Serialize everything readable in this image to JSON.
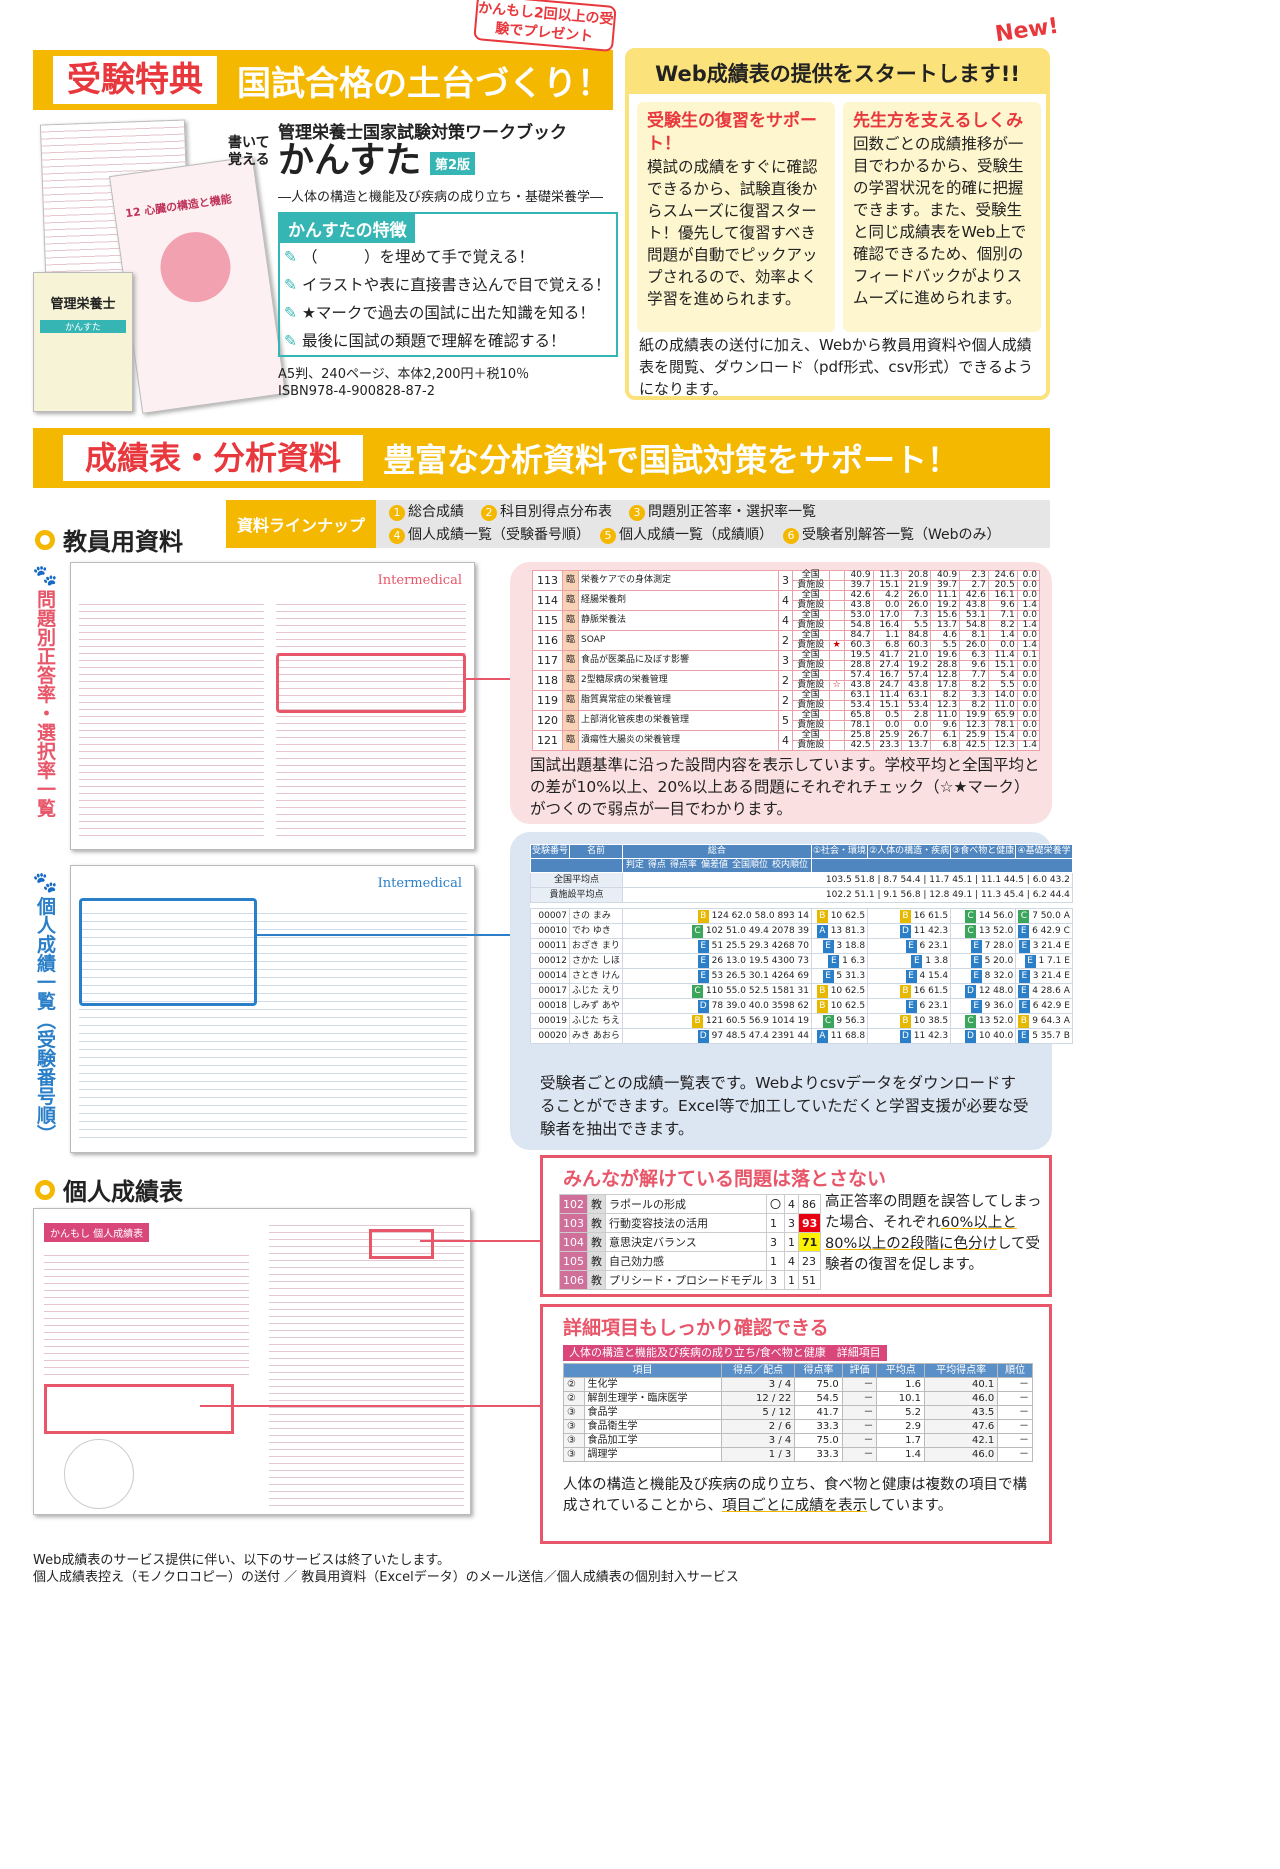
{
  "top": {
    "banner_label": "受験特典",
    "banner_title": "国試合格の土台づくり！",
    "sticker": "かんもし2回以上の受験でプレゼント",
    "book": {
      "catch": "書いて覚える",
      "series": "管理栄養士国家試験対策ワークブック",
      "title": "かんすた",
      "edition": "第2版",
      "subtitle": "―人体の構造と機能及び疾病の成り立ち・基礎栄養学―",
      "features_title": "かんすたの特徴",
      "features": [
        "（　　　）を埋めて手で覚える！",
        "イラストや表に直接書き込んで目で覚える！",
        "★マークで過去の国試に出た知識を知る！",
        "最後に国試の類題で理解を確認する！"
      ],
      "spec": "A5判、240ページ、本体2,200円＋税10％",
      "isbn": "ISBN978-4-900828-87-2",
      "thumb_chapter": "12 心臓の構造と機能",
      "cover_title": "管理栄養士"
    }
  },
  "web": {
    "new": "New!",
    "title": "Web成績表の提供をスタートします!!",
    "left": {
      "title": "受験生の復習をサポート！",
      "body": "模試の成績をすぐに確認できるから、試験直後からスムーズに復習スタート！優先して復習すべき問題が自動でピックアップされるので、効率よく学習を進められます。"
    },
    "right": {
      "title": "先生方を支えるしくみ",
      "body": "回数ごとの成績推移が一目でわかるから、受験生の学習状況を的確に把握できます。また、受験生と同じ成績表をWeb上で確認できるため、個別のフィードバックがよりスムーズに進められます。"
    },
    "footer": "紙の成績表の送付に加え、Webから教員用資料や個人成績表を閲覧、ダウンロード（pdf形式、csv形式）できるようになります。"
  },
  "analysis": {
    "banner_label": "成績表・分析資料",
    "banner_title": "豊富な分析資料で国試対策をサポート！"
  },
  "teacher": {
    "title": "教員用資料",
    "lineup_label": "資料ラインナップ",
    "lineup": [
      {
        "n": "1",
        "t": "総合成績"
      },
      {
        "n": "2",
        "t": "科目別得点分布表"
      },
      {
        "n": "3",
        "t": "問題別正答率・選択率一覧"
      },
      {
        "n": "4",
        "t": "個人成績一覧（受験番号順）"
      },
      {
        "n": "5",
        "t": "個人成績一覧（成績順）"
      },
      {
        "n": "6",
        "t": "受験者別解答一覧（Webのみ）"
      }
    ],
    "vlabel1": "問題別正答率・選択率一覧",
    "vlabel2": "個人成績一覧（受験番号順）",
    "brand": "Intermedical"
  },
  "problems": {
    "rows": [
      {
        "no": "113",
        "cat": "臨",
        "name": "栄養ケアでの身体測定",
        "ans": "3",
        "mark": "",
        "nat": [
          "40.9",
          "11.3",
          "20.8",
          "40.9",
          "2.3",
          "24.6",
          "0.0"
        ],
        "fac": [
          "39.7",
          "15.1",
          "21.9",
          "39.7",
          "2.7",
          "20.5",
          "0.0"
        ]
      },
      {
        "no": "114",
        "cat": "臨",
        "name": "経腸栄養剤",
        "ans": "4",
        "mark": "",
        "nat": [
          "42.6",
          "4.2",
          "26.0",
          "11.1",
          "42.6",
          "16.1",
          "0.0"
        ],
        "fac": [
          "43.8",
          "0.0",
          "26.0",
          "19.2",
          "43.8",
          "9.6",
          "1.4"
        ]
      },
      {
        "no": "115",
        "cat": "臨",
        "name": "静脈栄養法",
        "ans": "4",
        "mark": "",
        "nat": [
          "53.0",
          "17.0",
          "7.3",
          "15.6",
          "53.1",
          "7.1",
          "0.0"
        ],
        "fac": [
          "54.8",
          "16.4",
          "5.5",
          "13.7",
          "54.8",
          "8.2",
          "1.4"
        ]
      },
      {
        "no": "116",
        "cat": "臨",
        "name": "SOAP",
        "ans": "2",
        "mark": "★",
        "nat": [
          "84.7",
          "1.1",
          "84.8",
          "4.6",
          "8.1",
          "1.4",
          "0.0"
        ],
        "fac": [
          "60.3",
          "6.8",
          "60.3",
          "5.5",
          "26.0",
          "0.0",
          "1.4"
        ]
      },
      {
        "no": "117",
        "cat": "臨",
        "name": "食品が医薬品に及ぼす影響",
        "ans": "3",
        "mark": "",
        "nat": [
          "19.5",
          "41.7",
          "21.0",
          "19.6",
          "6.3",
          "11.4",
          "0.1"
        ],
        "fac": [
          "28.8",
          "27.4",
          "19.2",
          "28.8",
          "9.6",
          "15.1",
          "0.0"
        ]
      },
      {
        "no": "118",
        "cat": "臨",
        "name": "2型糖尿病の栄養管理",
        "ans": "2",
        "mark": "☆",
        "nat": [
          "57.4",
          "16.7",
          "57.4",
          "12.8",
          "7.7",
          "5.4",
          "0.0"
        ],
        "fac": [
          "43.8",
          "24.7",
          "43.8",
          "17.8",
          "8.2",
          "5.5",
          "0.0"
        ]
      },
      {
        "no": "119",
        "cat": "臨",
        "name": "脂質異常症の栄養管理",
        "ans": "2",
        "mark": "",
        "nat": [
          "63.1",
          "11.4",
          "63.1",
          "8.2",
          "3.3",
          "14.0",
          "0.0"
        ],
        "fac": [
          "53.4",
          "15.1",
          "53.4",
          "12.3",
          "8.2",
          "11.0",
          "0.0"
        ]
      },
      {
        "no": "120",
        "cat": "臨",
        "name": "上部消化管疾患の栄養管理",
        "ans": "5",
        "mark": "",
        "nat": [
          "65.8",
          "0.5",
          "2.8",
          "11.0",
          "19.9",
          "65.9",
          "0.0"
        ],
        "fac": [
          "78.1",
          "0.0",
          "0.0",
          "9.6",
          "12.3",
          "78.1",
          "0.0"
        ]
      },
      {
        "no": "121",
        "cat": "臨",
        "name": "潰瘍性大腸炎の栄養管理",
        "ans": "4",
        "mark": "",
        "nat": [
          "25.8",
          "25.9",
          "26.7",
          "6.1",
          "25.9",
          "15.4",
          "0.0"
        ],
        "fac": [
          "42.5",
          "23.3",
          "13.7",
          "6.8",
          "42.5",
          "12.3",
          "1.4"
        ]
      }
    ],
    "nat_label": "全国",
    "fac_label": "貴施設",
    "desc": "国試出題基準に沿った設問内容を表示しています。学校平均と全国平均との差が10%以上、20%以上ある問題にそれぞれチェック（☆★マーク）がつくので弱点が一目でわかります。"
  },
  "students": {
    "headers": [
      "受験番号",
      "名前",
      "総合",
      "①社会・環境",
      "②人体の構造・疾病",
      "③食べ物と健康",
      "④基礎栄養学"
    ],
    "subheaders": [
      "判定",
      "得点",
      "得点率",
      "偏差値",
      "全国順位",
      "校内順位"
    ],
    "avg": [
      {
        "label": "全国平均点",
        "vals": "103.5 51.8 | 8.7 54.4 | 11.7 45.1 | 11.1 44.5 | 6.0 43.2"
      },
      {
        "label": "貴施設平均点",
        "vals": "102.2 51.1 | 9.1 56.8 | 12.8 49.1 | 11.3 45.4 | 6.2 44.4"
      }
    ],
    "rows": [
      [
        "00007",
        "さの まみ",
        "B",
        "124 62.0 58.0 893 14",
        "B",
        "10 62.5",
        "B",
        "16 61.5",
        "C",
        "14 56.0",
        "C",
        "7 50.0",
        "A"
      ],
      [
        "00010",
        "でわ ゆき",
        "C",
        "102 51.0 49.4 2078 39",
        "A",
        "13 81.3",
        "D",
        "11 42.3",
        "C",
        "13 52.0",
        "E",
        "6 42.9",
        "C"
      ],
      [
        "00011",
        "おざき まり",
        "E",
        "51 25.5 29.3 4268 70",
        "E",
        "3 18.8",
        "E",
        "6 23.1",
        "E",
        "7 28.0",
        "E",
        "3 21.4",
        "E"
      ],
      [
        "00012",
        "さかた しほ",
        "E",
        "26 13.0 19.5 4300 73",
        "E",
        "1 6.3",
        "E",
        "1 3.8",
        "E",
        "5 20.0",
        "E",
        "1 7.1",
        "E"
      ],
      [
        "00014",
        "さとき けん",
        "E",
        "53 26.5 30.1 4264 69",
        "E",
        "5 31.3",
        "E",
        "4 15.4",
        "E",
        "8 32.0",
        "E",
        "3 21.4",
        "E"
      ],
      [
        "00017",
        "ふじた えり",
        "C",
        "110 55.0 52.5 1581 31",
        "B",
        "10 62.5",
        "B",
        "16 61.5",
        "D",
        "12 48.0",
        "E",
        "4 28.6",
        "A"
      ],
      [
        "00018",
        "しみず あや",
        "D",
        "78 39.0 40.0 3598 62",
        "B",
        "10 62.5",
        "E",
        "6 23.1",
        "E",
        "9 36.0",
        "E",
        "6 42.9",
        "E"
      ],
      [
        "00019",
        "ふじた ちえ",
        "B",
        "121 60.5 56.9 1014 19",
        "C",
        "9 56.3",
        "B",
        "10 38.5",
        "C",
        "13 52.0",
        "B",
        "9 64.3",
        "A"
      ],
      [
        "00020",
        "みき あおら",
        "D",
        "97 48.5 47.4 2391 44",
        "A",
        "11 68.8",
        "D",
        "11 42.3",
        "D",
        "10 40.0",
        "E",
        "5 35.7",
        "B"
      ]
    ],
    "desc": "受験者ごとの成績一覧表です。Webよりcsvデータをダウンロードすることができます。Excel等で加工していただくと学習支援が必要な受験者を抽出できます。"
  },
  "personal": {
    "title": "個人成績表",
    "thumb_title": "かんもし 個人成績表",
    "box1": {
      "title": "みんなが解けている問題は落とさない",
      "rows": [
        [
          "102",
          "教",
          "ラポールの形成",
          "〇",
          "4",
          "86"
        ],
        [
          "103",
          "教",
          "行動変容技法の活用",
          "1",
          "3",
          "93"
        ],
        [
          "104",
          "教",
          "意思決定バランス",
          "3",
          "1",
          "71"
        ],
        [
          "105",
          "教",
          "自己効力感",
          "1",
          "4",
          "23"
        ],
        [
          "106",
          "教",
          "プリシード・プロシードモデル",
          "3",
          "1",
          "51"
        ]
      ],
      "desc_a": "高正答率の問題を誤答してしまった場合、それぞれ",
      "desc_b": "60%以上と80%以上の2段階に色分け",
      "desc_c": "して受験者の復習を促します。"
    },
    "box2": {
      "title": "詳細項目もしっかり確認できる",
      "bar": "人体の構造と機能及び疾病の成り立ち/食べ物と健康　詳細項目",
      "headers": [
        "項目",
        "得点／配点",
        "得点率",
        "評価",
        "平均点",
        "平均得点率",
        "順位"
      ],
      "rows": [
        [
          "②",
          "生化学",
          "3 / 4",
          "75.0",
          "－",
          "1.6",
          "40.1",
          "－"
        ],
        [
          "②",
          "解剖生理学・臨床医学",
          "12 / 22",
          "54.5",
          "－",
          "10.1",
          "46.0",
          "－"
        ],
        [
          "③",
          "食品学",
          "5 / 12",
          "41.7",
          "－",
          "5.2",
          "43.5",
          "－"
        ],
        [
          "③",
          "食品衛生学",
          "2 / 6",
          "33.3",
          "－",
          "2.9",
          "47.6",
          "－"
        ],
        [
          "③",
          "食品加工学",
          "3 / 4",
          "75.0",
          "－",
          "1.7",
          "42.1",
          "－"
        ],
        [
          "③",
          "調理学",
          "1 / 3",
          "33.3",
          "－",
          "1.4",
          "46.0",
          "－"
        ]
      ],
      "desc_a": "人体の構造と機能及び疾病の成り立ち、食べ物と健康は複数の項目で構成されていることから、",
      "desc_b": "項目ごとに成績を表示",
      "desc_c": "しています。"
    }
  },
  "footer": {
    "line1": "Web成績表のサービス提供に伴い、以下のサービスは終了いたします。",
    "line2": "個人成績表控え（モノクロコピー）の送付 ／ 教員用資料（Excelデータ）のメール送信／個人成績表の個別封入サービス"
  },
  "colors": {
    "yellow": "#f5b800",
    "red": "#e8383d",
    "teal": "#35b6b4",
    "pink": "#e8566a",
    "blue": "#4f86bf"
  }
}
